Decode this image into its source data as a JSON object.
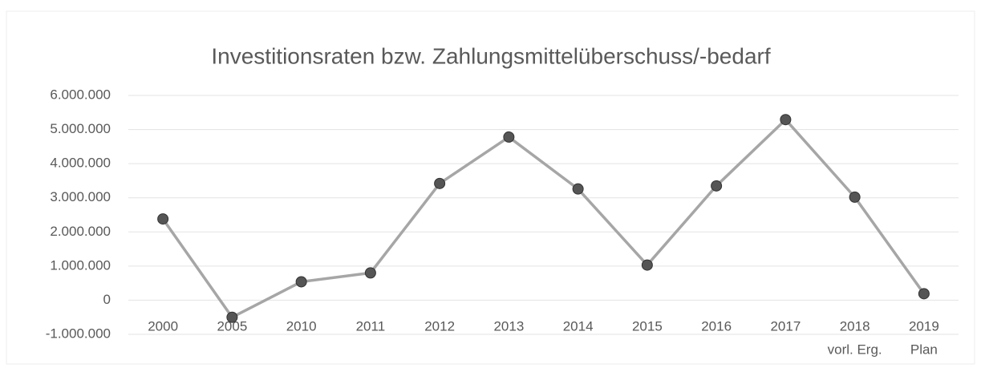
{
  "chart_data": {
    "type": "line",
    "title": "Investitionsraten bzw. Zahlungsmittelüberschuss/-bedarf",
    "categories": [
      "2000",
      "2005",
      "2010",
      "2011",
      "2012",
      "2013",
      "2014",
      "2015",
      "2016",
      "2017",
      [
        "2018",
        "vorl. Erg."
      ],
      [
        "2019",
        "Plan"
      ]
    ],
    "series": [
      {
        "color": "#a6a6a6",
        "marker_color": "#555555",
        "values": [
          2380000,
          -500000,
          540000,
          800000,
          3420000,
          4780000,
          3260000,
          1030000,
          3350000,
          5290000,
          3020000,
          190000
        ]
      }
    ],
    "ylim": [
      -1000000,
      6000000
    ],
    "yticks": [
      {
        "value": -1000000,
        "label": "-1.000.000"
      },
      0,
      {
        "value": 1000000,
        "label": "1.000.000"
      },
      {
        "value": 2000000,
        "label": "2.000.000"
      },
      {
        "value": 3000000,
        "label": "3.000.000"
      },
      {
        "value": 4000000,
        "label": "4.000.000"
      },
      {
        "value": 5000000,
        "label": "5.000.000"
      },
      {
        "value": 6000000,
        "label": "6.000.000"
      }
    ],
    "grid": true
  }
}
